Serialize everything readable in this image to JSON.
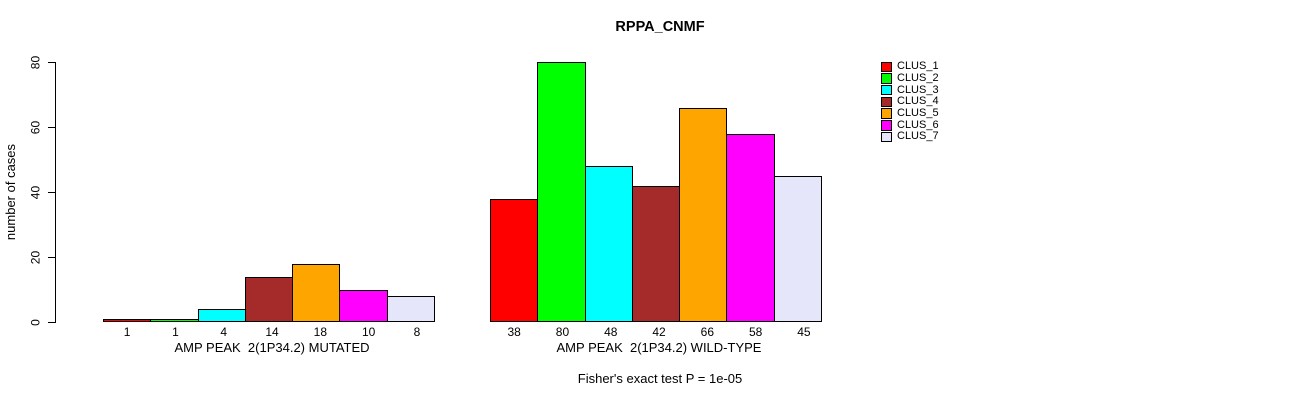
{
  "chart_data": {
    "type": "bar",
    "title": "RPPA_CNMF",
    "ylabel": "number of cases",
    "ylim": [
      0,
      80
    ],
    "yticks": [
      0,
      20,
      40,
      60,
      80
    ],
    "grid": false,
    "legend_position": "right",
    "categories": [
      "AMP PEAK  2(1P34.2) MUTATED",
      "AMP PEAK  2(1P34.2) WILD-TYPE"
    ],
    "series": [
      {
        "name": "CLUS_1",
        "color": "#FF0000",
        "values": [
          1,
          38
        ]
      },
      {
        "name": "CLUS_2",
        "color": "#00FF00",
        "values": [
          1,
          80
        ]
      },
      {
        "name": "CLUS_3",
        "color": "#00FFFF",
        "values": [
          4,
          48
        ]
      },
      {
        "name": "CLUS_4",
        "color": "#A52A2A",
        "values": [
          14,
          42
        ]
      },
      {
        "name": "CLUS_5",
        "color": "#FFA500",
        "values": [
          18,
          66
        ]
      },
      {
        "name": "CLUS_6",
        "color": "#FF00FF",
        "values": [
          10,
          58
        ]
      },
      {
        "name": "CLUS_7",
        "color": "#E6E6FA",
        "values": [
          8,
          45
        ]
      }
    ],
    "bar_value_labels": [
      [
        1,
        1,
        4,
        14,
        18,
        10,
        8
      ],
      [
        38,
        80,
        48,
        42,
        66,
        58,
        45
      ]
    ],
    "annotation": "Fisher's exact test P = 1e-05"
  }
}
